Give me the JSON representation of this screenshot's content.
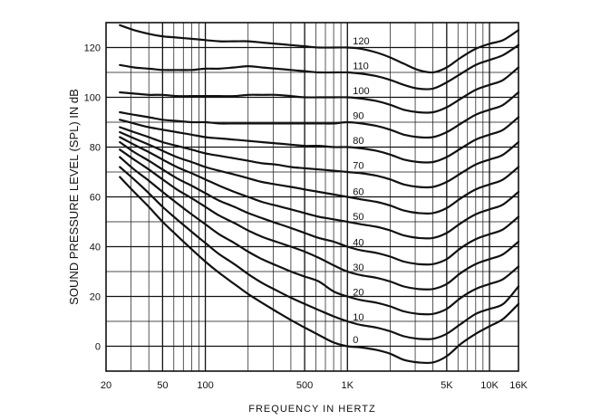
{
  "chart_data": {
    "type": "line",
    "title": "",
    "xlabel": "FREQUENCY IN HERTZ",
    "ylabel": "SOUND PRESSURE LEVEL (SPL) IN dB",
    "x_scale": "log",
    "xlim": [
      20,
      16000
    ],
    "ylim": [
      -10,
      130
    ],
    "grid": true,
    "x_ticks": [
      {
        "value": 20,
        "label": "20"
      },
      {
        "value": 50,
        "label": "50"
      },
      {
        "value": 100,
        "label": "100"
      },
      {
        "value": 500,
        "label": "500"
      },
      {
        "value": 1000,
        "label": "1K"
      },
      {
        "value": 5000,
        "label": "5K"
      },
      {
        "value": 10000,
        "label": "10K"
      },
      {
        "value": 16000,
        "label": "16K"
      }
    ],
    "y_ticks": [
      {
        "value": 0,
        "label": "0"
      },
      {
        "value": 20,
        "label": "20"
      },
      {
        "value": 40,
        "label": "40"
      },
      {
        "value": 60,
        "label": "60"
      },
      {
        "value": 80,
        "label": "80"
      },
      {
        "value": 100,
        "label": "100"
      },
      {
        "value": 120,
        "label": "120"
      }
    ],
    "x": [
      25,
      31.5,
      40,
      50,
      63,
      80,
      100,
      125,
      160,
      200,
      250,
      315,
      400,
      500,
      630,
      800,
      1000,
      1250,
      1600,
      2000,
      2500,
      3150,
      4000,
      5000,
      6300,
      8000,
      10000,
      12500,
      16000
    ],
    "series": [
      {
        "name": "0",
        "values": [
          68,
          62,
          56,
          50,
          44.5,
          39,
          34,
          29.5,
          25,
          21,
          17.5,
          14,
          10.5,
          7.5,
          4.5,
          1.5,
          0,
          -0.5,
          -1.5,
          -3,
          -5.5,
          -6.5,
          -6.5,
          -4,
          1,
          5,
          8,
          11,
          17
        ]
      },
      {
        "name": "10",
        "values": [
          72,
          67,
          61.5,
          56,
          51,
          46,
          41.5,
          37,
          33,
          29,
          25.5,
          22.5,
          19.5,
          17,
          14.5,
          12,
          10,
          8.5,
          7.5,
          6,
          4,
          3,
          3,
          5,
          9,
          13,
          15,
          17,
          24
        ]
      },
      {
        "name": "20",
        "values": [
          76,
          71,
          66.5,
          62,
          57.5,
          53,
          49,
          45,
          41.5,
          38,
          35,
          32.5,
          30,
          28,
          26,
          22,
          20,
          18.5,
          17.5,
          16,
          14,
          13,
          13,
          15,
          19.5,
          23,
          25,
          27,
          32
        ]
      },
      {
        "name": "30",
        "values": [
          79,
          75,
          71,
          67,
          63,
          59.5,
          56,
          52.5,
          49.5,
          46.5,
          44,
          42,
          40,
          38,
          35.5,
          32.5,
          30,
          28.5,
          27.5,
          26,
          24,
          23,
          23,
          25,
          29.5,
          33,
          35,
          37,
          42
        ]
      },
      {
        "name": "40",
        "values": [
          82,
          78,
          74.5,
          71,
          67.5,
          64.5,
          61.5,
          58.5,
          56,
          53.5,
          51.5,
          49.5,
          47.5,
          45.5,
          43.5,
          42,
          40,
          38.5,
          37.5,
          36,
          34,
          33,
          33,
          35,
          39.5,
          43,
          45,
          47,
          52
        ]
      },
      {
        "name": "50",
        "values": [
          84,
          81,
          78,
          75,
          72,
          69.5,
          67,
          64.5,
          62,
          60,
          58,
          56.5,
          55,
          53.5,
          52,
          51,
          50,
          49,
          48,
          46.5,
          44.5,
          43.5,
          43.5,
          45.5,
          49.5,
          53,
          55,
          57,
          62
        ]
      },
      {
        "name": "60",
        "values": [
          86,
          83.5,
          81,
          78.5,
          76,
          74,
          72,
          70.5,
          69,
          67.5,
          66,
          65,
          64,
          63,
          62,
          61,
          60,
          59,
          58,
          56.5,
          54.5,
          53.5,
          53.5,
          55.5,
          59.5,
          63,
          65,
          67,
          72
        ]
      },
      {
        "name": "70",
        "values": [
          88,
          86,
          84,
          82,
          80.5,
          79,
          77.5,
          76.5,
          75.5,
          74.5,
          73.5,
          73,
          72,
          71.5,
          71,
          70.5,
          70,
          69.5,
          68.5,
          67,
          65,
          64,
          64,
          66,
          69.5,
          73,
          75,
          77,
          82
        ]
      },
      {
        "name": "80",
        "values": [
          91,
          89.5,
          88,
          87,
          86,
          85,
          84,
          83.5,
          83,
          82.5,
          82,
          81.5,
          81,
          80.5,
          80.5,
          80,
          80,
          79.5,
          78.5,
          77,
          75,
          74,
          74,
          76,
          79.5,
          83,
          85,
          87,
          92
        ]
      },
      {
        "name": "90",
        "values": [
          94,
          93,
          92,
          91,
          90.5,
          90,
          90,
          89.5,
          89.5,
          89.5,
          89.5,
          89.5,
          89.5,
          89.5,
          89.5,
          89.5,
          90,
          89.5,
          88.5,
          87,
          85,
          84,
          84,
          86,
          89.5,
          93,
          95,
          97,
          102
        ]
      },
      {
        "name": "100",
        "values": [
          102,
          101.5,
          101,
          101,
          100.5,
          100.5,
          100.5,
          100.5,
          100.5,
          101,
          101,
          101,
          100.5,
          100,
          100,
          100,
          100,
          99.5,
          98.5,
          97,
          95,
          94,
          94,
          96,
          99.5,
          103,
          105,
          107,
          112
        ]
      },
      {
        "name": "110",
        "values": [
          113,
          112,
          111.5,
          111,
          111,
          111,
          111.5,
          111.5,
          112,
          112.5,
          112,
          111.5,
          111,
          110.5,
          110,
          110,
          110,
          109.5,
          108.5,
          107,
          105,
          103.5,
          103.5,
          106,
          109.5,
          113,
          115,
          117,
          121
        ]
      },
      {
        "name": "120",
        "values": [
          129,
          127,
          125.5,
          124.5,
          124,
          123.5,
          123,
          122.5,
          122.5,
          122.5,
          122,
          121.5,
          121,
          120.5,
          120,
          120,
          120,
          119.5,
          118,
          116,
          113.5,
          111,
          110,
          112,
          116,
          119.5,
          121.5,
          123,
          127
        ]
      }
    ]
  }
}
